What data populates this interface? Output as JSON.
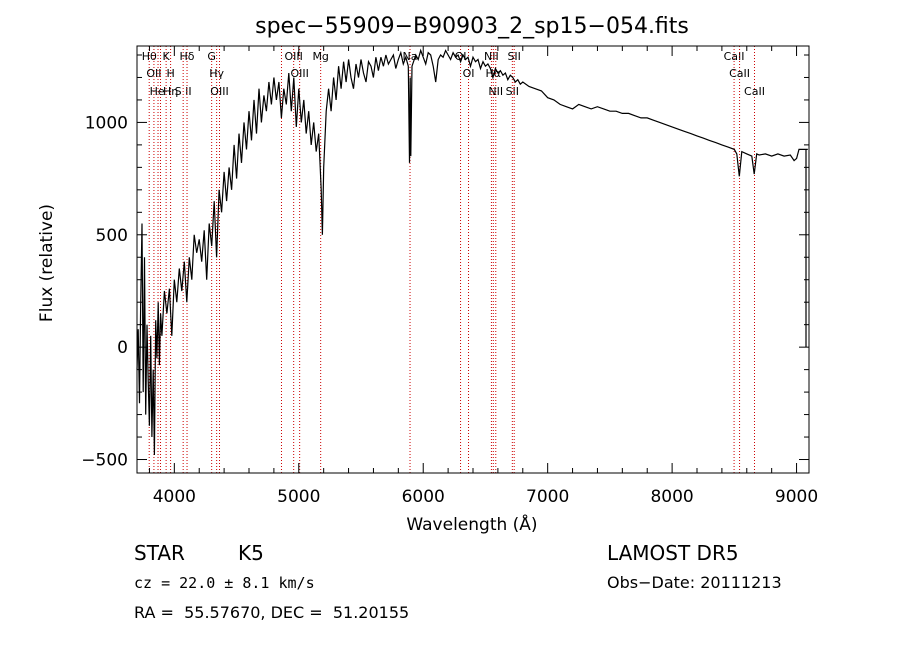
{
  "chart_data": {
    "type": "line",
    "title": "spec−55909−B90903_2_sp15−054.fits",
    "xlabel": "Wavelength (Å)",
    "ylabel": "Flux (relative)",
    "xlim": [
      3700,
      9100
    ],
    "ylim": [
      -560,
      1340
    ],
    "xticks": [
      4000,
      5000,
      6000,
      7000,
      8000,
      9000
    ],
    "yticks": [
      -500,
      0,
      500,
      1000
    ],
    "line_color": "#000000",
    "marker_color": "#cc0000",
    "grid": false,
    "series": [
      {
        "values": [
          [
            3700,
            -100
          ],
          [
            3710,
            80
          ],
          [
            3720,
            -250
          ],
          [
            3730,
            200
          ],
          [
            3740,
            550
          ],
          [
            3750,
            -200
          ],
          [
            3760,
            400
          ],
          [
            3770,
            -300
          ],
          [
            3780,
            100
          ],
          [
            3790,
            -150
          ],
          [
            3800,
            -350
          ],
          [
            3810,
            50
          ],
          [
            3820,
            -400
          ],
          [
            3830,
            -100
          ],
          [
            3840,
            -480
          ],
          [
            3850,
            120
          ],
          [
            3860,
            -50
          ],
          [
            3870,
            200
          ],
          [
            3880,
            -80
          ],
          [
            3890,
            150
          ],
          [
            3900,
            50
          ],
          [
            3920,
            250
          ],
          [
            3940,
            150
          ],
          [
            3960,
            260
          ],
          [
            3980,
            50
          ],
          [
            4000,
            300
          ],
          [
            4020,
            200
          ],
          [
            4040,
            350
          ],
          [
            4060,
            250
          ],
          [
            4080,
            380
          ],
          [
            4100,
            200
          ],
          [
            4120,
            400
          ],
          [
            4140,
            300
          ],
          [
            4160,
            500
          ],
          [
            4180,
            420
          ],
          [
            4200,
            480
          ],
          [
            4220,
            380
          ],
          [
            4240,
            520
          ],
          [
            4260,
            300
          ],
          [
            4280,
            550
          ],
          [
            4300,
            450
          ],
          [
            4320,
            650
          ],
          [
            4340,
            400
          ],
          [
            4360,
            700
          ],
          [
            4380,
            600
          ],
          [
            4400,
            780
          ],
          [
            4420,
            650
          ],
          [
            4440,
            800
          ],
          [
            4460,
            700
          ],
          [
            4480,
            900
          ],
          [
            4500,
            750
          ],
          [
            4520,
            950
          ],
          [
            4540,
            820
          ],
          [
            4560,
            1000
          ],
          [
            4580,
            880
          ],
          [
            4600,
            1050
          ],
          [
            4620,
            920
          ],
          [
            4640,
            1100
          ],
          [
            4660,
            950
          ],
          [
            4680,
            1150
          ],
          [
            4700,
            1000
          ],
          [
            4720,
            1120
          ],
          [
            4740,
            1050
          ],
          [
            4760,
            1180
          ],
          [
            4780,
            1080
          ],
          [
            4800,
            1200
          ],
          [
            4820,
            1100
          ],
          [
            4840,
            1180
          ],
          [
            4860,
            1020
          ],
          [
            4880,
            1150
          ],
          [
            4900,
            1080
          ],
          [
            4920,
            1220
          ],
          [
            4940,
            1050
          ],
          [
            4960,
            1200
          ],
          [
            4980,
            980
          ],
          [
            5000,
            1150
          ],
          [
            5020,
            1000
          ],
          [
            5040,
            1100
          ],
          [
            5060,
            950
          ],
          [
            5080,
            1050
          ],
          [
            5100,
            900
          ],
          [
            5120,
            1000
          ],
          [
            5140,
            870
          ],
          [
            5160,
            950
          ],
          [
            5180,
            700
          ],
          [
            5190,
            500
          ],
          [
            5200,
            800
          ],
          [
            5220,
            1050
          ],
          [
            5240,
            1150
          ],
          [
            5260,
            1050
          ],
          [
            5280,
            1200
          ],
          [
            5300,
            1100
          ],
          [
            5320,
            1250
          ],
          [
            5340,
            1150
          ],
          [
            5360,
            1270
          ],
          [
            5380,
            1180
          ],
          [
            5400,
            1280
          ],
          [
            5420,
            1200
          ],
          [
            5440,
            1150
          ],
          [
            5460,
            1260
          ],
          [
            5480,
            1200
          ],
          [
            5500,
            1280
          ],
          [
            5520,
            1220
          ],
          [
            5540,
            1180
          ],
          [
            5560,
            1270
          ],
          [
            5580,
            1250
          ],
          [
            5600,
            1200
          ],
          [
            5620,
            1290
          ],
          [
            5640,
            1230
          ],
          [
            5660,
            1290
          ],
          [
            5680,
            1250
          ],
          [
            5700,
            1300
          ],
          [
            5720,
            1260
          ],
          [
            5740,
            1280
          ],
          [
            5760,
            1300
          ],
          [
            5780,
            1240
          ],
          [
            5800,
            1280
          ],
          [
            5820,
            1310
          ],
          [
            5840,
            1260
          ],
          [
            5860,
            1290
          ],
          [
            5880,
            1250
          ],
          [
            5890,
            820
          ],
          [
            5895,
            1200
          ],
          [
            5900,
            850
          ],
          [
            5910,
            1250
          ],
          [
            5940,
            1300
          ],
          [
            5960,
            1280
          ],
          [
            5980,
            1320
          ],
          [
            6000,
            1290
          ],
          [
            6020,
            1260
          ],
          [
            6040,
            1310
          ],
          [
            6060,
            1300
          ],
          [
            6080,
            1250
          ],
          [
            6100,
            1180
          ],
          [
            6120,
            1280
          ],
          [
            6140,
            1300
          ],
          [
            6160,
            1290
          ],
          [
            6180,
            1320
          ],
          [
            6200,
            1300
          ],
          [
            6220,
            1280
          ],
          [
            6240,
            1310
          ],
          [
            6260,
            1290
          ],
          [
            6280,
            1300
          ],
          [
            6300,
            1270
          ],
          [
            6320,
            1300
          ],
          [
            6340,
            1280
          ],
          [
            6360,
            1290
          ],
          [
            6380,
            1250
          ],
          [
            6400,
            1290
          ],
          [
            6420,
            1270
          ],
          [
            6440,
            1280
          ],
          [
            6460,
            1240
          ],
          [
            6480,
            1270
          ],
          [
            6500,
            1250
          ],
          [
            6520,
            1260
          ],
          [
            6540,
            1240
          ],
          [
            6560,
            1200
          ],
          [
            6580,
            1240
          ],
          [
            6600,
            1220
          ],
          [
            6620,
            1230
          ],
          [
            6640,
            1210
          ],
          [
            6660,
            1220
          ],
          [
            6680,
            1190
          ],
          [
            6700,
            1210
          ],
          [
            6720,
            1200
          ],
          [
            6740,
            1180
          ],
          [
            6760,
            1190
          ],
          [
            6780,
            1170
          ],
          [
            6800,
            1180
          ],
          [
            6850,
            1160
          ],
          [
            6900,
            1150
          ],
          [
            6950,
            1140
          ],
          [
            7000,
            1110
          ],
          [
            7050,
            1100
          ],
          [
            7100,
            1080
          ],
          [
            7150,
            1070
          ],
          [
            7200,
            1060
          ],
          [
            7250,
            1080
          ],
          [
            7300,
            1070
          ],
          [
            7350,
            1060
          ],
          [
            7400,
            1070
          ],
          [
            7450,
            1060
          ],
          [
            7500,
            1050
          ],
          [
            7550,
            1050
          ],
          [
            7600,
            1040
          ],
          [
            7650,
            1040
          ],
          [
            7700,
            1030
          ],
          [
            7750,
            1020
          ],
          [
            7800,
            1020
          ],
          [
            7850,
            1010
          ],
          [
            7900,
            1000
          ],
          [
            7950,
            990
          ],
          [
            8000,
            980
          ],
          [
            8050,
            970
          ],
          [
            8100,
            960
          ],
          [
            8150,
            950
          ],
          [
            8200,
            940
          ],
          [
            8250,
            930
          ],
          [
            8300,
            920
          ],
          [
            8350,
            910
          ],
          [
            8400,
            900
          ],
          [
            8450,
            890
          ],
          [
            8500,
            880
          ],
          [
            8520,
            860
          ],
          [
            8540,
            760
          ],
          [
            8560,
            870
          ],
          [
            8600,
            860
          ],
          [
            8640,
            850
          ],
          [
            8660,
            770
          ],
          [
            8680,
            860
          ],
          [
            8700,
            855
          ],
          [
            8750,
            860
          ],
          [
            8800,
            850
          ],
          [
            8850,
            860
          ],
          [
            8900,
            850
          ],
          [
            8950,
            855
          ],
          [
            8980,
            830
          ],
          [
            9000,
            840
          ],
          [
            9020,
            880
          ],
          [
            9040,
            880
          ],
          [
            9060,
            880
          ],
          [
            9080,
            880
          ],
          [
            9090,
            880
          ]
        ]
      }
    ],
    "lines": [
      {
        "x": 3798,
        "labels": [
          "Hθ"
        ]
      },
      {
        "x": 3836,
        "labels": [
          "OII"
        ]
      },
      {
        "x": 3869,
        "labels": []
      },
      {
        "x": 3889,
        "labels": [
          "He I"
        ]
      },
      {
        "x": 3934,
        "labels": [
          "K"
        ]
      },
      {
        "x": 3970,
        "labels": [
          "H",
          "Hη"
        ]
      },
      {
        "x": 4071,
        "labels": [
          "S II"
        ]
      },
      {
        "x": 4102,
        "labels": [
          "Hδ"
        ]
      },
      {
        "x": 4300,
        "labels": [
          "G"
        ]
      },
      {
        "x": 4340,
        "labels": [
          "Hγ"
        ]
      },
      {
        "x": 4363,
        "labels": [
          "OIII"
        ]
      },
      {
        "x": 4861,
        "labels": []
      },
      {
        "x": 4959,
        "labels": [
          "OIII"
        ]
      },
      {
        "x": 5007,
        "labels": [
          "OIII"
        ]
      },
      {
        "x": 5176,
        "labels": [
          "Mg"
        ]
      },
      {
        "x": 5894,
        "labels": [
          "Na"
        ]
      },
      {
        "x": 6300,
        "labels": [
          "OI"
        ]
      },
      {
        "x": 6364,
        "labels": [
          "OI"
        ]
      },
      {
        "x": 6548,
        "labels": [
          "NII"
        ]
      },
      {
        "x": 6563,
        "labels": [
          "Hα"
        ]
      },
      {
        "x": 6583,
        "labels": [
          "NII"
        ]
      },
      {
        "x": 6716,
        "labels": [
          "SII"
        ]
      },
      {
        "x": 6731,
        "labels": [
          "SII"
        ]
      },
      {
        "x": 8498,
        "labels": [
          "CaII"
        ]
      },
      {
        "x": 8542,
        "labels": [
          "CaII"
        ]
      },
      {
        "x": 8662,
        "labels": [
          "CaII"
        ]
      }
    ]
  },
  "info": {
    "obj_type": "STAR",
    "subclass": "K5",
    "survey": "LAMOST DR5",
    "cz": "cz = 22.0 ± 8.1 km/s",
    "obs_date": "Obs−Date: 20111213",
    "coords": "RA =  55.57670, DEC =  51.20155"
  }
}
